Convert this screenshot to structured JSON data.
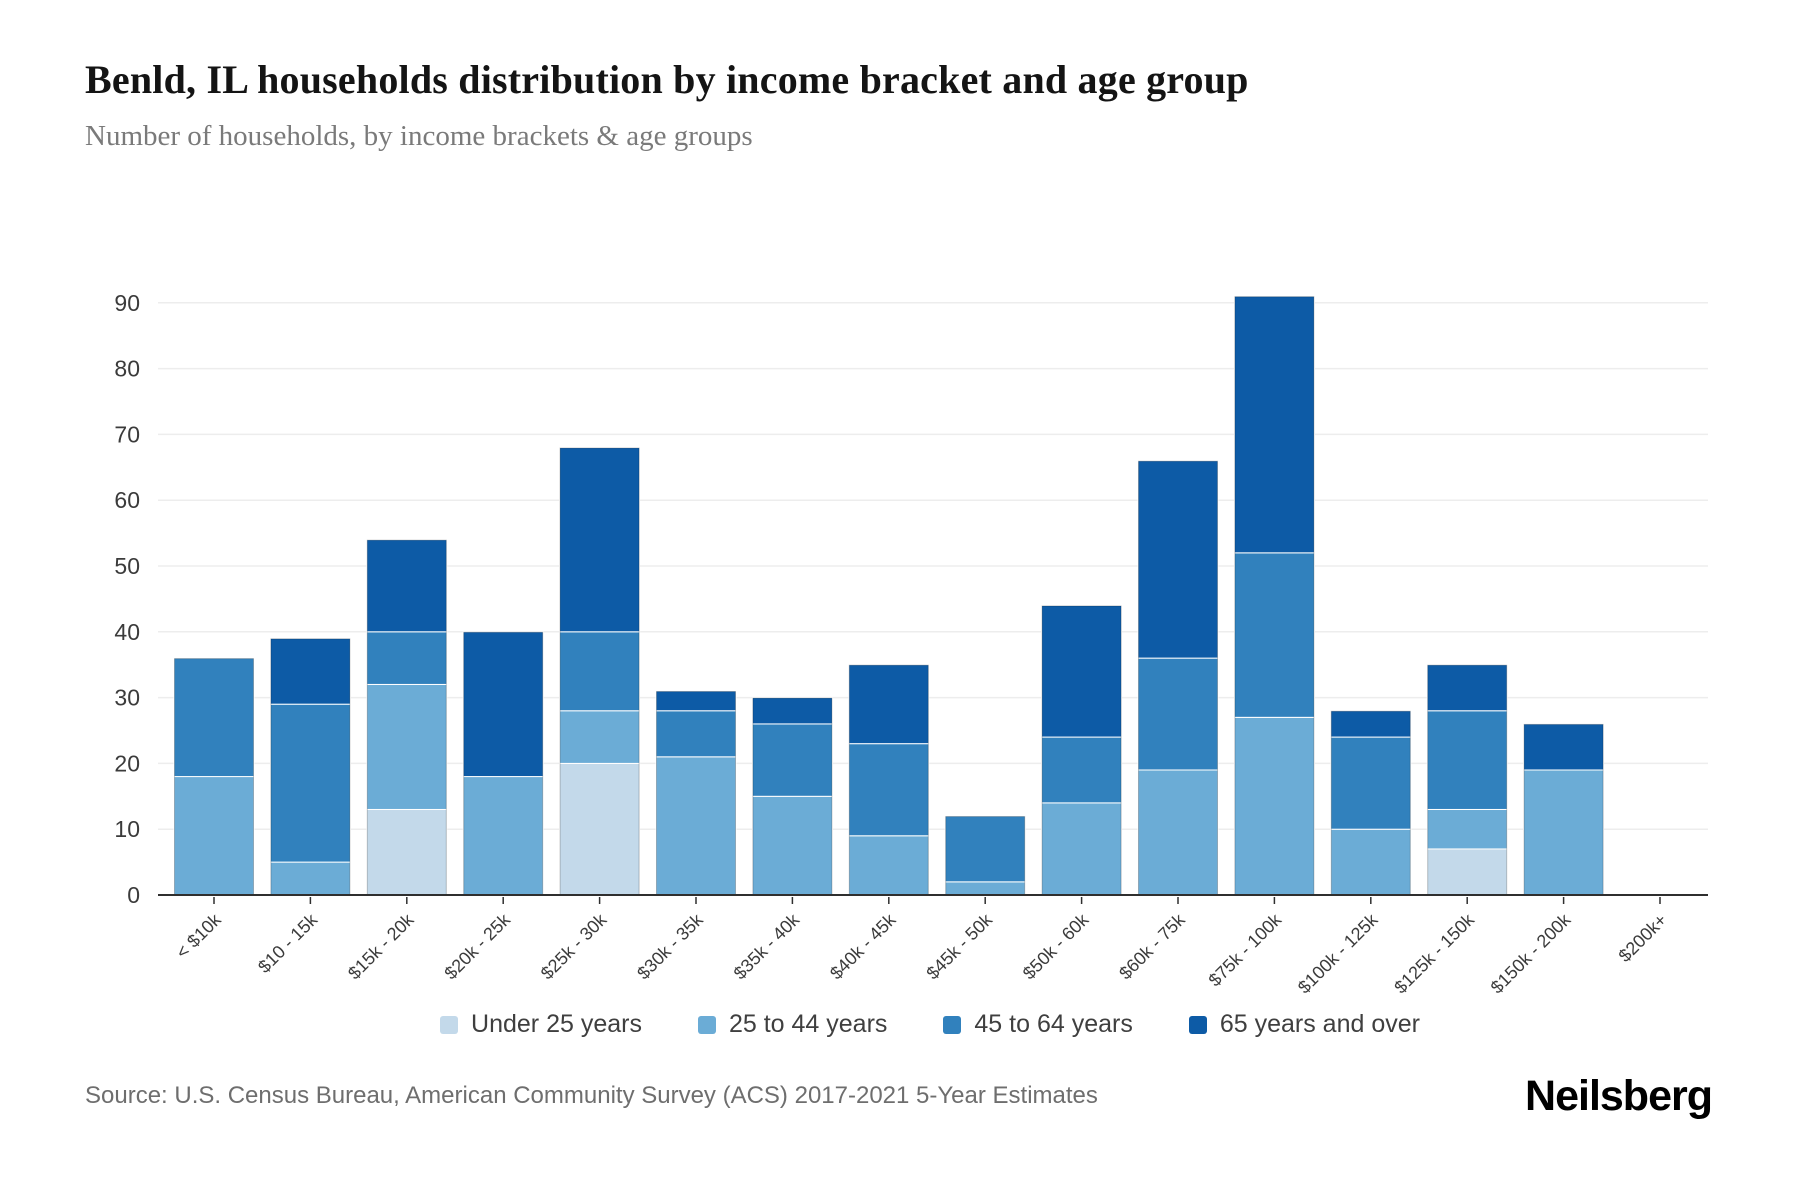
{
  "header": {
    "title": "Benld, IL households distribution by income bracket and age group",
    "subtitle": "Number of households, by income brackets & age groups"
  },
  "chart_data": {
    "type": "bar",
    "stacked": true,
    "title": "Benld, IL households distribution by income bracket and age group",
    "xlabel": "",
    "ylabel": "",
    "categories": [
      "< $10k",
      "$10 - 15k",
      "$15k - 20k",
      "$20k - 25k",
      "$25k - 30k",
      "$30k - 35k",
      "$35k - 40k",
      "$40k - 45k",
      "$45k - 50k",
      "$50k - 60k",
      "$60k - 75k",
      "$75k - 100k",
      "$100k - 125k",
      "$125k - 150k",
      "$150k - 200k",
      "$200k+"
    ],
    "series": [
      {
        "name": "Under 25 years",
        "color": "#c3d9ea",
        "values": [
          0,
          0,
          13,
          0,
          20,
          0,
          0,
          0,
          0,
          0,
          0,
          0,
          0,
          7,
          0,
          0
        ]
      },
      {
        "name": "25 to 44 years",
        "color": "#6bacd6",
        "values": [
          18,
          5,
          19,
          18,
          8,
          21,
          15,
          9,
          2,
          14,
          19,
          27,
          10,
          6,
          19,
          0
        ]
      },
      {
        "name": "45 to 64 years",
        "color": "#3181bd",
        "values": [
          18,
          24,
          8,
          0,
          12,
          7,
          11,
          14,
          10,
          10,
          17,
          25,
          14,
          15,
          0,
          0
        ]
      },
      {
        "name": "65 years and over",
        "color": "#0d5ba6",
        "values": [
          0,
          10,
          14,
          22,
          28,
          3,
          4,
          12,
          0,
          20,
          30,
          39,
          4,
          7,
          7,
          0
        ]
      }
    ],
    "totals": [
      36,
      39,
      54,
      40,
      68,
      31,
      30,
      35,
      12,
      44,
      66,
      91,
      28,
      35,
      26,
      0
    ],
    "ylim": [
      0,
      90
    ],
    "yticks": [
      0,
      10,
      20,
      30,
      40,
      50,
      60,
      70,
      80,
      90
    ],
    "grid": true,
    "legend_position": "bottom",
    "grid_color": "#ededed",
    "baseline_color": "#2f2f2f",
    "axis_text_color": "#3b3b3b"
  },
  "footer": {
    "source": "Source: U.S. Census Bureau, American Community Survey (ACS) 2017-2021 5-Year Estimates",
    "brand": "Neilsberg"
  }
}
